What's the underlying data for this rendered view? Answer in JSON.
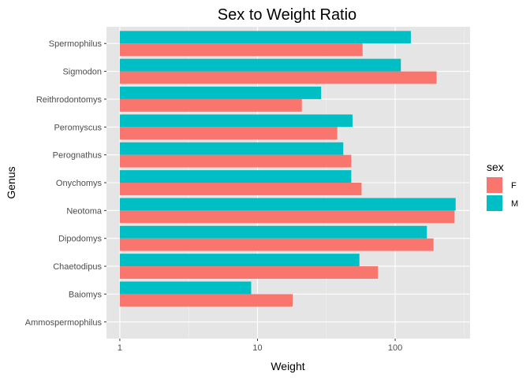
{
  "chart_data": {
    "type": "bar",
    "orientation": "horizontal",
    "title": "Sex to Weight Ratio",
    "xlabel": "Weight",
    "ylabel": "Genus",
    "x_scale": "log10",
    "xlim": [
      0.8,
      350
    ],
    "x_ticks": [
      {
        "value": 1,
        "label": "1"
      },
      {
        "value": 10,
        "label": "10"
      },
      {
        "value": 100,
        "label": "100"
      }
    ],
    "categories": [
      "Ammospermophilus",
      "Baiomys",
      "Chaetodipus",
      "Dipodomys",
      "Neotoma",
      "Onychomys",
      "Perognathus",
      "Peromyscus",
      "Reithrodontomys",
      "Sigmodon",
      "Spermophilus"
    ],
    "series": [
      {
        "name": "F",
        "color": "#F8766D",
        "values": [
          null,
          18,
          75,
          190,
          270,
          57,
          48,
          38,
          21,
          200,
          58
        ]
      },
      {
        "name": "M",
        "color": "#00BFC4",
        "values": [
          null,
          9,
          55,
          170,
          275,
          48,
          42,
          49,
          29,
          110,
          130
        ]
      }
    ],
    "legend": {
      "title": "sex",
      "position": "right"
    },
    "grid": true,
    "panel_background": "#E5E5E5"
  }
}
